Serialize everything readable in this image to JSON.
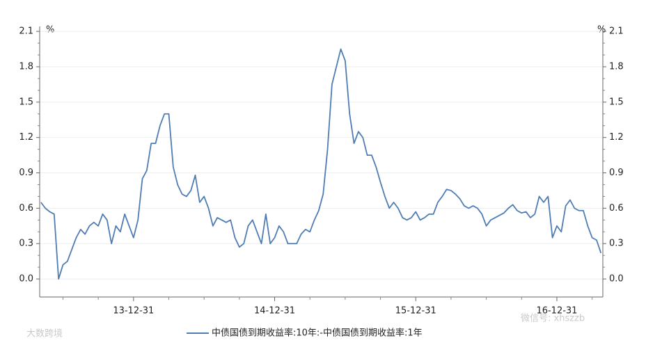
{
  "chart_data": {
    "type": "line",
    "unit_left": "%",
    "unit_right": "%",
    "categories": [
      null,
      null,
      null,
      null,
      null,
      null,
      null,
      null,
      null,
      null,
      null,
      null,
      null,
      null,
      null,
      null,
      null,
      null,
      null,
      null,
      null,
      "13-12-31",
      null,
      null,
      null,
      null,
      null,
      null,
      null,
      null,
      null,
      null,
      null,
      null,
      null,
      null,
      null,
      null,
      null,
      null,
      null,
      null,
      null,
      null,
      null,
      null,
      null,
      null,
      null,
      null,
      null,
      null,
      null,
      "14-12-31",
      null,
      null,
      null,
      null,
      null,
      null,
      null,
      null,
      null,
      null,
      null,
      null,
      null,
      null,
      null,
      null,
      null,
      null,
      null,
      null,
      null,
      null,
      null,
      null,
      null,
      null,
      null,
      null,
      null,
      null,
      null,
      "15-12-31",
      null,
      null,
      null,
      null,
      null,
      null,
      null,
      null,
      null,
      null,
      null,
      null,
      null,
      null,
      null,
      null,
      null,
      null,
      null,
      null,
      null,
      null,
      null,
      null,
      null,
      null,
      null,
      null,
      null,
      null,
      null,
      "16-12-31",
      null,
      null,
      null,
      null,
      null,
      null,
      null,
      null,
      null,
      null
    ],
    "series": [
      {
        "name": "中债国债到期收益率:10年:-中债国债到期收益率:1年",
        "color": "#4f7cb3",
        "values": [
          0.65,
          0.6,
          0.57,
          0.55,
          0.0,
          0.12,
          0.15,
          0.25,
          0.35,
          0.42,
          0.38,
          0.45,
          0.48,
          0.45,
          0.55,
          0.5,
          0.3,
          0.45,
          0.4,
          0.55,
          0.45,
          0.35,
          0.5,
          0.85,
          0.92,
          1.15,
          1.15,
          1.3,
          1.4,
          1.4,
          0.95,
          0.8,
          0.72,
          0.7,
          0.75,
          0.88,
          0.65,
          0.7,
          0.6,
          0.45,
          0.52,
          0.5,
          0.48,
          0.5,
          0.35,
          0.27,
          0.3,
          0.45,
          0.5,
          0.4,
          0.3,
          0.55,
          0.3,
          0.35,
          0.45,
          0.4,
          0.3,
          0.3,
          0.3,
          0.38,
          0.42,
          0.4,
          0.5,
          0.58,
          0.72,
          1.1,
          1.65,
          1.8,
          1.95,
          1.85,
          1.4,
          1.15,
          1.25,
          1.2,
          1.05,
          1.05,
          0.95,
          0.82,
          0.7,
          0.6,
          0.65,
          0.6,
          0.52,
          0.5,
          0.52,
          0.57,
          0.5,
          0.52,
          0.55,
          0.55,
          0.65,
          0.7,
          0.76,
          0.75,
          0.72,
          0.68,
          0.62,
          0.6,
          0.62,
          0.6,
          0.55,
          0.45,
          0.5,
          0.52,
          0.54,
          0.56,
          0.6,
          0.63,
          0.58,
          0.56,
          0.57,
          0.52,
          0.55,
          0.7,
          0.65,
          0.7,
          0.35,
          0.45,
          0.4,
          0.62,
          0.67,
          0.6,
          0.58,
          0.58,
          0.45,
          0.35,
          0.33,
          0.22
        ]
      }
    ],
    "ylim": [
      -0.153,
      2.142
    ],
    "yticks": [
      {
        "value": 0,
        "label": "0.0"
      },
      0.3,
      0.6,
      0.9,
      1.2,
      1.5,
      1.8,
      2.1
    ],
    "y2lim": [
      -0.153,
      2.142
    ],
    "y2ticks": [
      {
        "value": 0,
        "label": "0.0"
      },
      0.3,
      0.6,
      0.9,
      1.2,
      1.5,
      1.8,
      2.1
    ],
    "grid": true,
    "legend": "bottom",
    "watermarks": [
      "大数跨境",
      "微信号: xhszzb"
    ]
  }
}
